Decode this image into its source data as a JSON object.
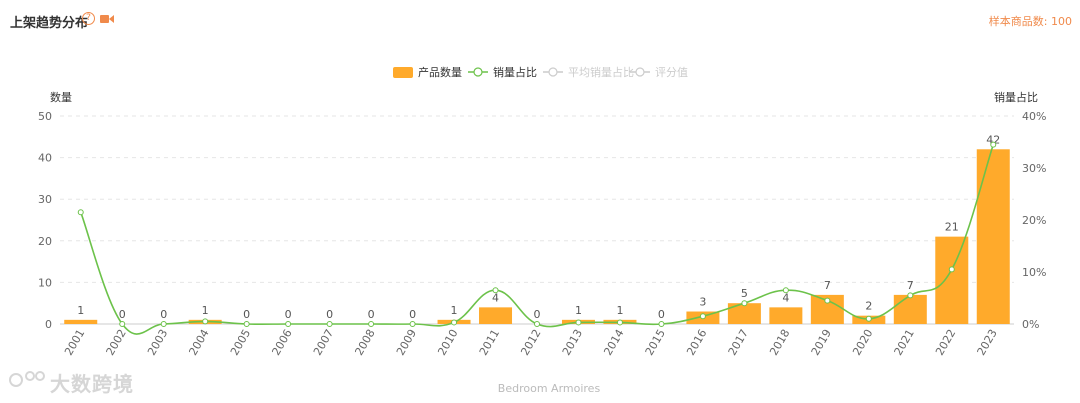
{
  "header": {
    "title": "上架趋势分布",
    "sample_label": "样本商品数: 100"
  },
  "watermark": {
    "text": "大数跨境"
  },
  "colors": {
    "bar": "#ffaa2b",
    "line": "#6cc24a",
    "accent": "#f08a4b",
    "legend_inactive": "#cccccc",
    "axis_text": "#666666",
    "grid": "#e6e6e6"
  },
  "chart_data": {
    "type": "bar",
    "xlabel": "Bedroom Armoires",
    "ylabel_left": "数量",
    "ylabel_right": "销量占比",
    "ylim_left": [
      0,
      50
    ],
    "yticks_left": [
      0,
      10,
      20,
      30,
      40,
      50
    ],
    "ylim_right": [
      0,
      40
    ],
    "yticks_right": [
      "0%",
      "10%",
      "20%",
      "30%",
      "40%"
    ],
    "grid": true,
    "legend_position": "top-center",
    "legend": [
      {
        "name": "产品数量",
        "type": "bar",
        "active": true
      },
      {
        "name": "销量占比",
        "type": "line",
        "active": true
      },
      {
        "name": "平均销量占比",
        "type": "line",
        "active": false
      },
      {
        "name": "评分值",
        "type": "line",
        "active": false
      }
    ],
    "categories": [
      "2001",
      "2002",
      "2003",
      "2004",
      "2005",
      "2006",
      "2007",
      "2008",
      "2009",
      "2010",
      "2011",
      "2012",
      "2013",
      "2014",
      "2015",
      "2016",
      "2017",
      "2018",
      "2019",
      "2020",
      "2021",
      "2022",
      "2023"
    ],
    "series": [
      {
        "name": "产品数量",
        "type": "bar",
        "axis": "left",
        "values": [
          1,
          0,
          0,
          1,
          0,
          0,
          0,
          0,
          0,
          1,
          4,
          0,
          1,
          1,
          0,
          3,
          5,
          4,
          7,
          2,
          7,
          21,
          42
        ]
      },
      {
        "name": "销量占比",
        "type": "line",
        "axis": "right",
        "unit": "%",
        "values": [
          21.5,
          0,
          0,
          0.5,
          0,
          0,
          0,
          0,
          0,
          0.3,
          6.5,
          0,
          0.3,
          0.3,
          0,
          1.5,
          4,
          6.5,
          4.5,
          1,
          5.5,
          10.5,
          34.5
        ]
      }
    ]
  }
}
